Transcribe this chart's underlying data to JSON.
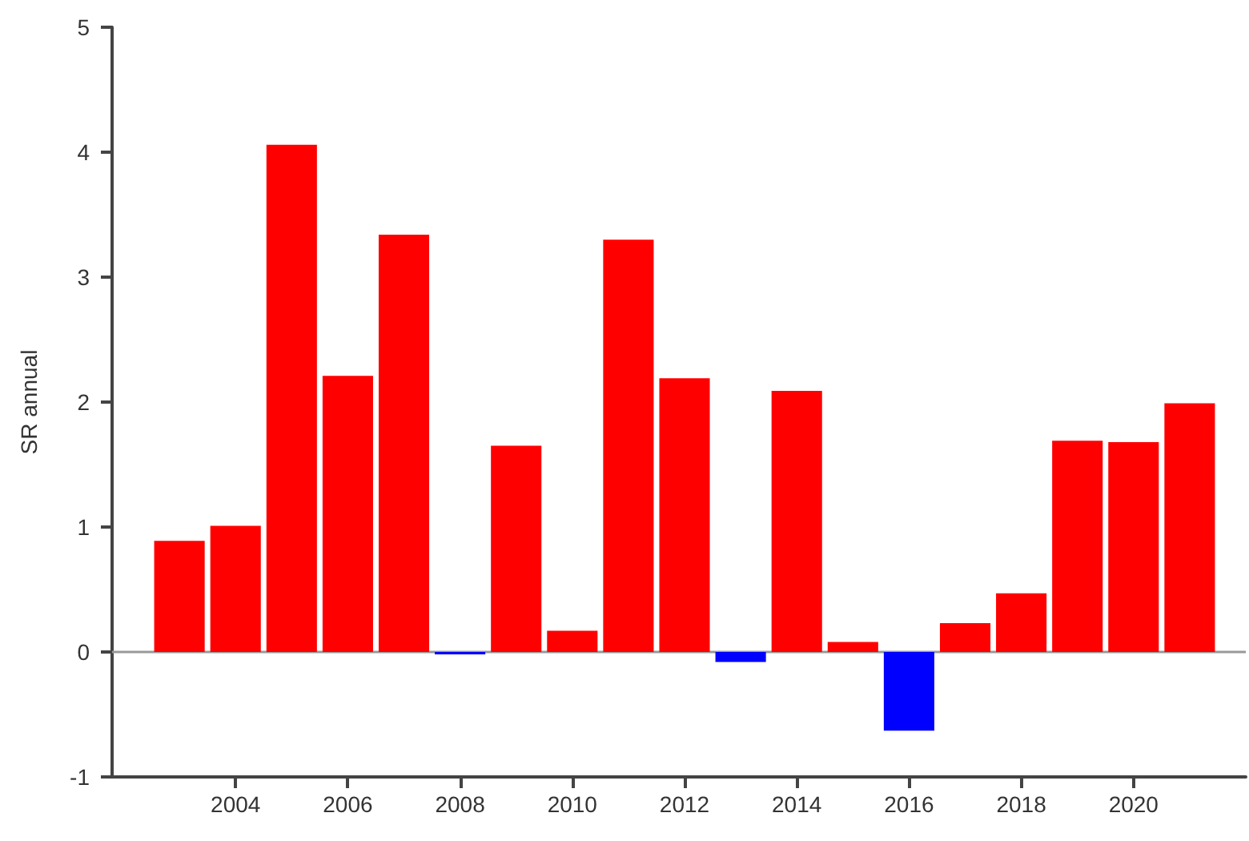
{
  "chart_data": {
    "type": "bar",
    "ylabel": "SR annual",
    "x": [
      2003,
      2004,
      2005,
      2006,
      2007,
      2008,
      2009,
      2010,
      2011,
      2012,
      2013,
      2014,
      2015,
      2016,
      2017,
      2018,
      2019,
      2020,
      2021
    ],
    "values": [
      0.89,
      1.01,
      4.06,
      2.21,
      3.34,
      -0.02,
      1.65,
      0.17,
      3.3,
      2.19,
      -0.08,
      2.09,
      0.08,
      -0.63,
      0.23,
      0.47,
      1.69,
      1.68,
      1.99
    ],
    "colors": [
      "#ff0000",
      "#ff0000",
      "#ff0000",
      "#ff0000",
      "#ff0000",
      "#0000ff",
      "#ff0000",
      "#ff0000",
      "#ff0000",
      "#ff0000",
      "#0000ff",
      "#ff0000",
      "#ff0000",
      "#0000ff",
      "#ff0000",
      "#ff0000",
      "#ff0000",
      "#ff0000",
      "#ff0000"
    ],
    "xlim": [
      2001.8,
      2022
    ],
    "xticks": [
      2004,
      2006,
      2008,
      2010,
      2012,
      2014,
      2016,
      2018,
      2020
    ],
    "ylim": [
      -1,
      5
    ],
    "yticks": [
      -1,
      0,
      1,
      2,
      3,
      4,
      5
    ],
    "ref_lines": [
      {
        "axis": "y",
        "value": 0,
        "color": "#999999"
      }
    ]
  }
}
